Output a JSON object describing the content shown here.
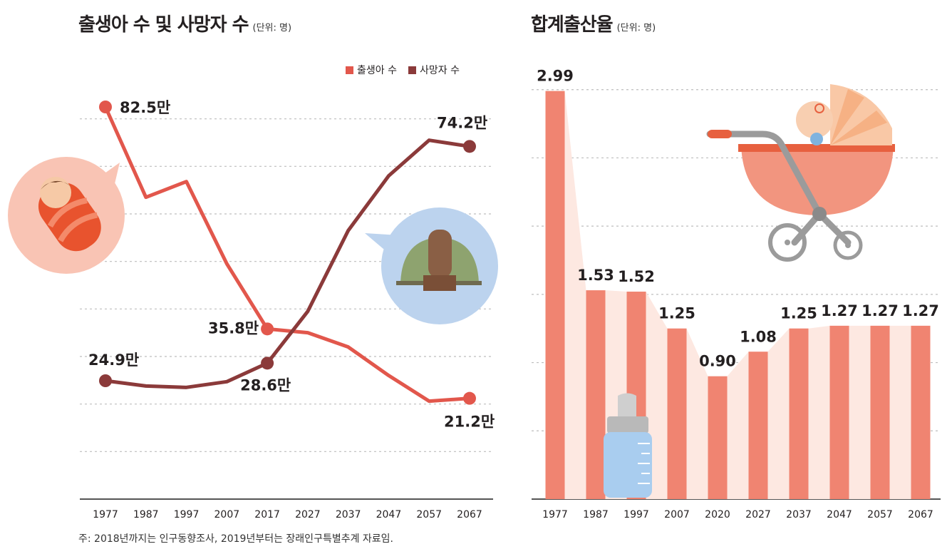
{
  "line_panel": {
    "title": "출생아 수 및 사망자 수",
    "unit": "(단위: 명)",
    "legend": [
      {
        "name": "출생아 수",
        "color": "#e2574c"
      },
      {
        "name": "사망자 수",
        "color": "#8b3a3a"
      }
    ],
    "footnote": "주: 2018년까지는 인구동향조사, 2019년부터는 장래인구특별추계 자료임."
  },
  "bar_panel": {
    "title": "합계출산율",
    "unit": "(단위: 명)"
  },
  "chart_data": [
    {
      "type": "line",
      "title": "출생아 수 및 사망자 수",
      "ylabel": "(단위: 명)",
      "categories": [
        "1977",
        "1987",
        "1997",
        "2007",
        "2017",
        "2027",
        "2037",
        "2047",
        "2057",
        "2067"
      ],
      "ylim": [
        0,
        90
      ],
      "grid": true,
      "legend_position": "top-right",
      "series": [
        {
          "name": "출생아 수",
          "color": "#e2574c",
          "values": [
            82.5,
            63.5,
            66.8,
            49.5,
            35.8,
            35.0,
            32.0,
            26.0,
            20.6,
            21.2
          ]
        },
        {
          "name": "사망자 수",
          "color": "#8b3a3a",
          "values": [
            24.9,
            23.8,
            23.5,
            24.7,
            28.6,
            39.5,
            56.5,
            68.0,
            75.5,
            74.2
          ]
        }
      ],
      "annotations": [
        {
          "series": 0,
          "index": 0,
          "text": "82.5만"
        },
        {
          "series": 0,
          "index": 4,
          "text": "35.8만"
        },
        {
          "series": 0,
          "index": 9,
          "text": "21.2만"
        },
        {
          "series": 1,
          "index": 0,
          "text": "24.9만"
        },
        {
          "series": 1,
          "index": 4,
          "text": "28.6만"
        },
        {
          "series": 1,
          "index": 9,
          "text": "74.2만"
        }
      ]
    },
    {
      "type": "bar",
      "title": "합계출산율",
      "ylabel": "(단위: 명)",
      "categories": [
        "1977",
        "1987",
        "1997",
        "2007",
        "2020",
        "2027",
        "2037",
        "2047",
        "2057",
        "2067"
      ],
      "values": [
        2.99,
        1.53,
        1.52,
        1.25,
        0.9,
        1.08,
        1.25,
        1.27,
        1.27,
        1.27
      ],
      "labels": [
        "2.99",
        "1.53",
        "1.52",
        "1.25",
        "0.90",
        "1.08",
        "1.25",
        "1.27",
        "1.27",
        "1.27"
      ],
      "ylim": [
        0,
        3.5
      ],
      "grid": true,
      "color": "#f08471",
      "fill_color": "#fde8e1"
    }
  ],
  "illustrations": {
    "baby": "swaddled-baby-icon",
    "grave": "grave-mound-icon",
    "stroller": "baby-stroller-icon",
    "bottle": "baby-bottle-icon"
  }
}
